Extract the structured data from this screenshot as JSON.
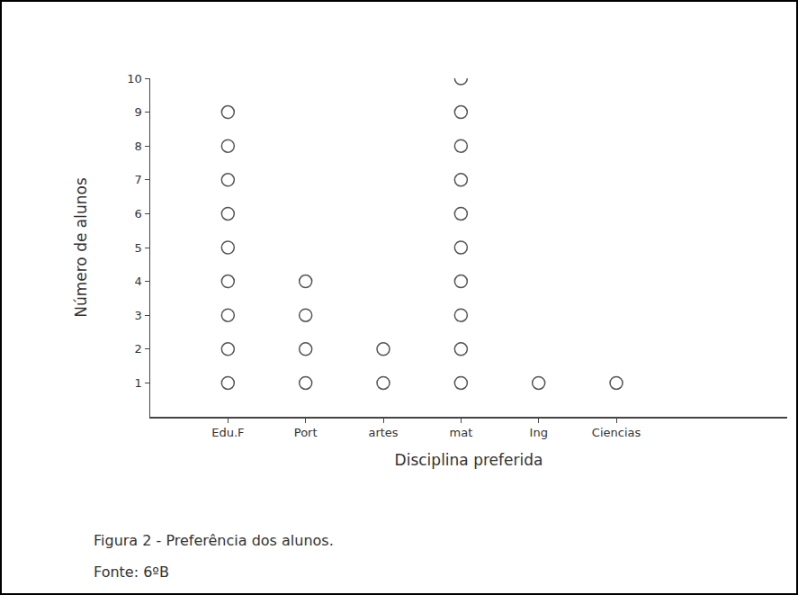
{
  "chart_data": {
    "type": "dot",
    "title": "Figura 2 - Preferência dos alunos.",
    "subtitle": "Fonte: 6ºB",
    "x_label": "Disciplina preferida",
    "y_label": "Número de alunos",
    "categories": [
      "Edu.F",
      "Port",
      "artes",
      "mat",
      "Ing",
      "Ciencias"
    ],
    "values": [
      9,
      4,
      2,
      10,
      1,
      1
    ],
    "color": "#555555",
    "marker": "circle-open",
    "ylim": [
      0,
      10
    ],
    "yticks": [
      1,
      2,
      3,
      4,
      5,
      6,
      7,
      8,
      9,
      10
    ],
    "grid": false
  }
}
